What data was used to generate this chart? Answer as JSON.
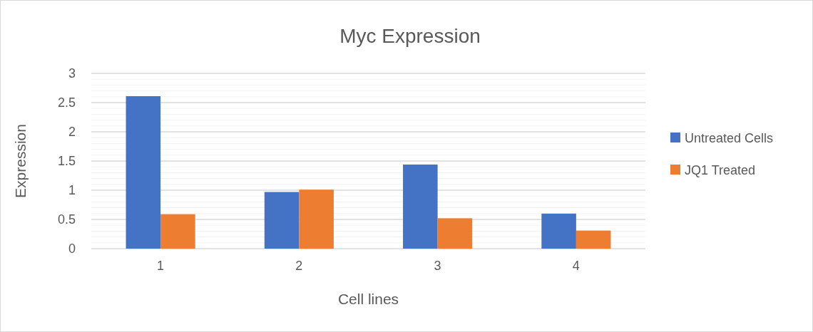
{
  "chart_data": {
    "type": "bar",
    "title": "Myc Expression",
    "xlabel": "Cell lines",
    "ylabel": "Expression",
    "categories": [
      "1",
      "2",
      "3",
      "4"
    ],
    "series": [
      {
        "name": "Untreated Cells",
        "color": "#4472c4",
        "values": [
          2.61,
          0.97,
          1.44,
          0.6
        ]
      },
      {
        "name": "JQ1 Treated",
        "color": "#ed7d31",
        "values": [
          0.59,
          1.01,
          0.52,
          0.31
        ]
      }
    ],
    "ylim": [
      0,
      3
    ],
    "yticks": [
      0,
      {
        "value": 0.1,
        "label": null
      },
      {
        "value": 0.2,
        "label": null
      },
      {
        "value": 0.3,
        "label": null
      },
      {
        "value": 0.4,
        "label": null
      },
      0.5,
      {
        "value": 0.6,
        "label": null
      },
      {
        "value": 0.7,
        "label": null
      },
      {
        "value": 0.8,
        "label": null
      },
      {
        "value": 0.9,
        "label": null
      },
      1,
      {
        "value": 1.1,
        "label": null
      },
      {
        "value": 1.2,
        "label": null
      },
      {
        "value": 1.3,
        "label": null
      },
      {
        "value": 1.4,
        "label": null
      },
      1.5,
      {
        "value": 1.6,
        "label": null
      },
      {
        "value": 1.7,
        "label": null
      },
      {
        "value": 1.8,
        "label": null
      },
      {
        "value": 1.9,
        "label": null
      },
      2,
      {
        "value": 2.1,
        "label": null
      },
      {
        "value": 2.2,
        "label": null
      },
      {
        "value": 2.3,
        "label": null
      },
      {
        "value": 2.4,
        "label": null
      },
      2.5,
      {
        "value": 2.6,
        "label": null
      },
      {
        "value": 2.7,
        "label": null
      },
      {
        "value": 2.8,
        "label": null
      },
      {
        "value": 2.9,
        "label": null
      },
      3
    ],
    "grid": "y",
    "legend": "right"
  }
}
